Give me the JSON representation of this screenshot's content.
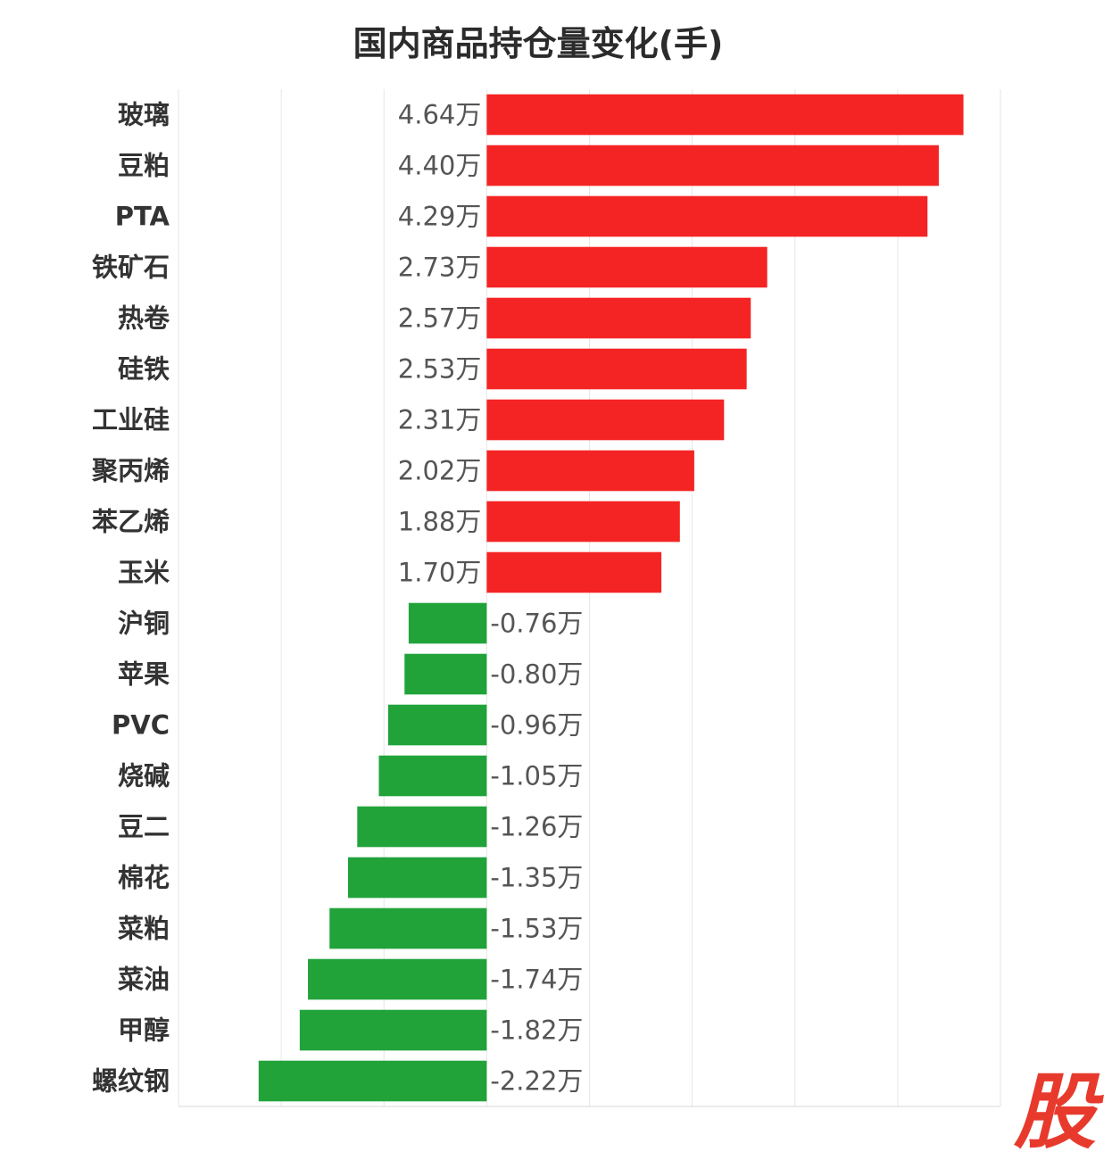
{
  "chart_data": {
    "type": "bar",
    "orientation": "horizontal",
    "title": "国内商品持仓量变化(手)",
    "unit_suffix": "万",
    "categories": [
      "玻璃",
      "豆粕",
      "PTA",
      "铁矿石",
      "热卷",
      "硅铁",
      "工业硅",
      "聚丙烯",
      "苯乙烯",
      "玉米",
      "沪铜",
      "苹果",
      "PVC",
      "烧碱",
      "豆二",
      "棉花",
      "菜粕",
      "菜油",
      "甲醇",
      "螺纹钢"
    ],
    "values": [
      4.64,
      4.4,
      4.29,
      2.73,
      2.57,
      2.53,
      2.31,
      2.02,
      1.88,
      1.7,
      -0.76,
      -0.8,
      -0.96,
      -1.05,
      -1.26,
      -1.35,
      -1.53,
      -1.74,
      -1.82,
      -2.22
    ],
    "value_labels": [
      "4.64万",
      "4.40万",
      "4.29万",
      "2.73万",
      "2.57万",
      "2.53万",
      "2.31万",
      "2.02万",
      "1.88万",
      "1.70万",
      "-0.76万",
      "-0.80万",
      "-0.96万",
      "-1.05万",
      "-1.26万",
      "-1.35万",
      "-1.53万",
      "-1.74万",
      "-1.82万",
      "-2.22万"
    ],
    "xlim": [
      -3,
      5
    ],
    "grid": true,
    "colors": {
      "positive": "#f52424",
      "negative": "#21a33a"
    }
  },
  "watermark": {
    "text": "股",
    "color": "#e83a2c"
  }
}
